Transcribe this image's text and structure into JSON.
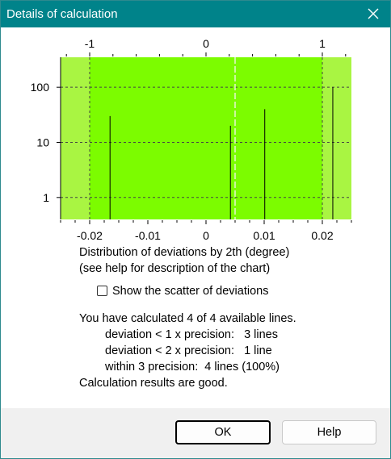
{
  "window": {
    "title": "Details of calculation"
  },
  "chart_data": {
    "type": "bar",
    "bottom_axis": {
      "ticks": [
        -0.02,
        -0.01,
        0,
        0.01,
        0.02
      ],
      "tick_labels": [
        "-0.02",
        "-0.01",
        "0",
        "0.01",
        "0.02"
      ],
      "range": [
        -0.025,
        0.025
      ]
    },
    "top_axis": {
      "ticks": [
        -1,
        0,
        1
      ],
      "tick_labels": [
        "-1",
        "0",
        "1"
      ],
      "note": "scaled to precision"
    },
    "y_axis": {
      "scale": "log",
      "tick_labels": [
        "1",
        "10",
        "100"
      ],
      "ticks": [
        1,
        10,
        100
      ],
      "range": [
        0.4,
        350
      ]
    },
    "bars": [
      {
        "x": -0.0165,
        "value": 30
      },
      {
        "x": 0.0042,
        "value": 20
      },
      {
        "x": 0.0101,
        "value": 40
      },
      {
        "x": 0.0218,
        "value": 100
      }
    ],
    "shaded_bands": [
      {
        "from": -0.025,
        "to": -0.02,
        "color": "#a9f542"
      },
      {
        "from": -0.02,
        "to": 0.02,
        "color": "#7cfc00"
      },
      {
        "from": 0.02,
        "to": 0.025,
        "color": "#a9f542"
      }
    ],
    "center_line_x": 0.005,
    "grid": true,
    "gridline_style": "dashed"
  },
  "texts": {
    "caption_line1": "Distribution of deviations by 2th (degree)",
    "caption_line2": "(see help for description of the chart)",
    "checkbox_label": "Show the scatter of deviations",
    "checkbox_checked": false,
    "summary_line1": "You have calculated 4 of 4 available lines.",
    "summary_line2": "deviation < 1 x precision:   3 lines",
    "summary_line3": "deviation < 2 x precision:   1 line",
    "summary_line4": "within 3 precision:  4 lines (100%)",
    "summary_line5": "Calculation results are good."
  },
  "buttons": {
    "ok": "OK",
    "help": "Help"
  },
  "icons": {
    "close": "close-icon"
  }
}
